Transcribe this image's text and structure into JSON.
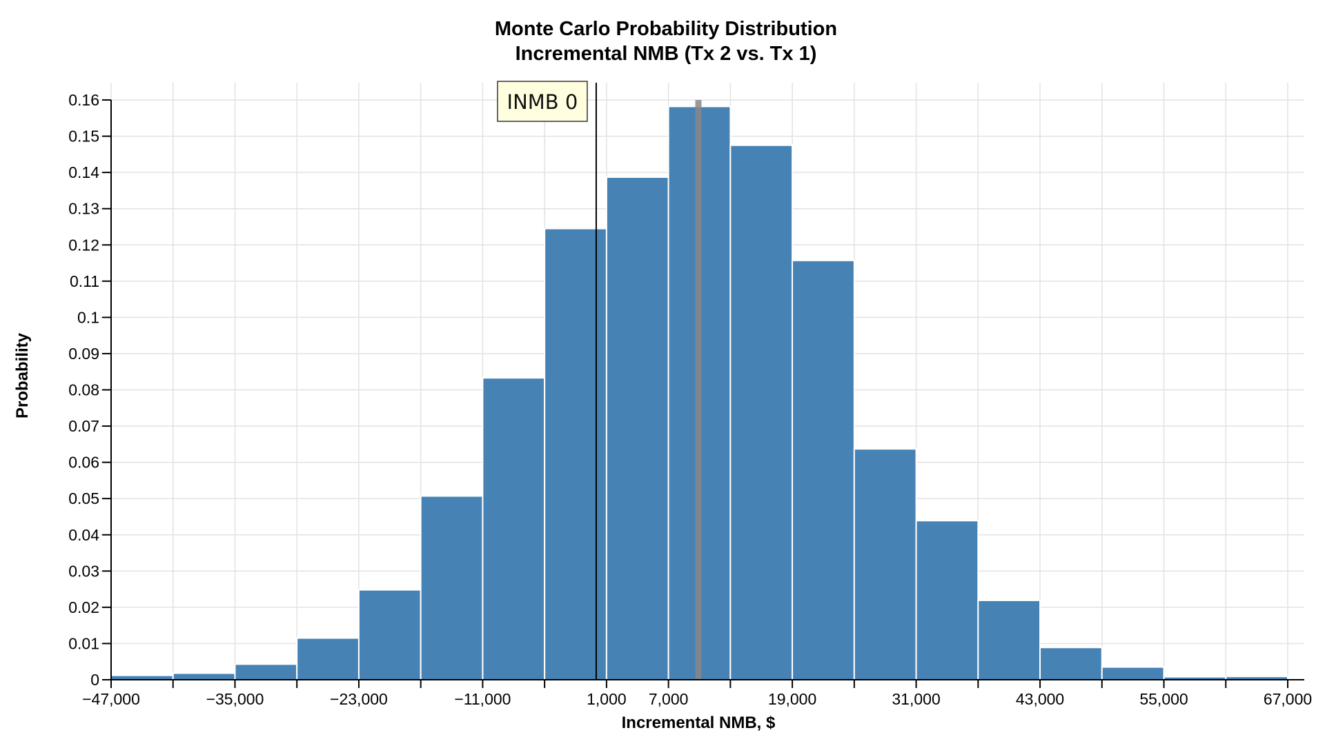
{
  "chart_data": {
    "type": "bar",
    "title": "Monte Carlo Probability Distribution",
    "subtitle": "Incremental NMB (Tx 2 vs. Tx 1)",
    "xlabel": "Incremental NMB, $",
    "ylabel": "Probability",
    "xlim": [
      -47000,
      67000
    ],
    "ylim": [
      0,
      0.16
    ],
    "bin_width": 6000,
    "bins": [
      {
        "x0": -47000,
        "x1": -41000,
        "value": 0.0012
      },
      {
        "x0": -41000,
        "x1": -35000,
        "value": 0.0018
      },
      {
        "x0": -35000,
        "x1": -29000,
        "value": 0.0043
      },
      {
        "x0": -29000,
        "x1": -23000,
        "value": 0.0115
      },
      {
        "x0": -23000,
        "x1": -17000,
        "value": 0.0248
      },
      {
        "x0": -17000,
        "x1": -11000,
        "value": 0.0507
      },
      {
        "x0": -11000,
        "x1": -5000,
        "value": 0.0833
      },
      {
        "x0": -5000,
        "x1": 1000,
        "value": 0.1245
      },
      {
        "x0": 1000,
        "x1": 7000,
        "value": 0.1387
      },
      {
        "x0": 7000,
        "x1": 13000,
        "value": 0.1582
      },
      {
        "x0": 13000,
        "x1": 19000,
        "value": 0.1475
      },
      {
        "x0": 19000,
        "x1": 25000,
        "value": 0.1157
      },
      {
        "x0": 25000,
        "x1": 31000,
        "value": 0.0637
      },
      {
        "x0": 31000,
        "x1": 37000,
        "value": 0.0439
      },
      {
        "x0": 37000,
        "x1": 43000,
        "value": 0.0219
      },
      {
        "x0": 43000,
        "x1": 49000,
        "value": 0.0089
      },
      {
        "x0": 49000,
        "x1": 55000,
        "value": 0.0035
      },
      {
        "x0": 55000,
        "x1": 61000,
        "value": 0.0008
      },
      {
        "x0": 61000,
        "x1": 67000,
        "value": 0.0009
      }
    ],
    "x_ticks": [
      {
        "value": -47000,
        "label": "−47,000"
      },
      {
        "value": -35000,
        "label": "−35,000"
      },
      {
        "value": -23000,
        "label": "−23,000"
      },
      {
        "value": -11000,
        "label": "−11,000"
      },
      {
        "value": 1000,
        "label": "1,000"
      },
      {
        "value": 7000,
        "label": "7,000"
      },
      {
        "value": 19000,
        "label": "19,000"
      },
      {
        "value": 31000,
        "label": "31,000"
      },
      {
        "value": 43000,
        "label": "43,000"
      },
      {
        "value": 55000,
        "label": "55,000"
      },
      {
        "value": 67000,
        "label": "67,000"
      }
    ],
    "x_minor_ticks": [
      -41000,
      -29000,
      -17000,
      -5000,
      13000,
      25000,
      37000,
      49000,
      61000
    ],
    "y_ticks": [
      {
        "value": 0,
        "label": "0"
      },
      {
        "value": 0.01,
        "label": "0.01"
      },
      {
        "value": 0.02,
        "label": "0.02"
      },
      {
        "value": 0.03,
        "label": "0.03"
      },
      {
        "value": 0.04,
        "label": "0.04"
      },
      {
        "value": 0.05,
        "label": "0.05"
      },
      {
        "value": 0.06,
        "label": "0.06"
      },
      {
        "value": 0.07,
        "label": "0.07"
      },
      {
        "value": 0.08,
        "label": "0.08"
      },
      {
        "value": 0.09,
        "label": "0.09"
      },
      {
        "value": 0.1,
        "label": "0.1"
      },
      {
        "value": 0.11,
        "label": "0.11"
      },
      {
        "value": 0.12,
        "label": "0.12"
      },
      {
        "value": 0.13,
        "label": "0.13"
      },
      {
        "value": 0.14,
        "label": "0.14"
      },
      {
        "value": 0.15,
        "label": "0.15"
      },
      {
        "value": 0.16,
        "label": "0.16"
      }
    ],
    "reference_line": {
      "value": 0,
      "label": "INMB 0",
      "color": "#000000"
    },
    "mean_line": {
      "value": 9900,
      "color": "#888888"
    },
    "grid": true,
    "colors": {
      "bar": "#4682b4",
      "bar_edge": "#ffffff",
      "grid": "#e2e2e2",
      "annotation_bg": "#ffffe0"
    }
  }
}
